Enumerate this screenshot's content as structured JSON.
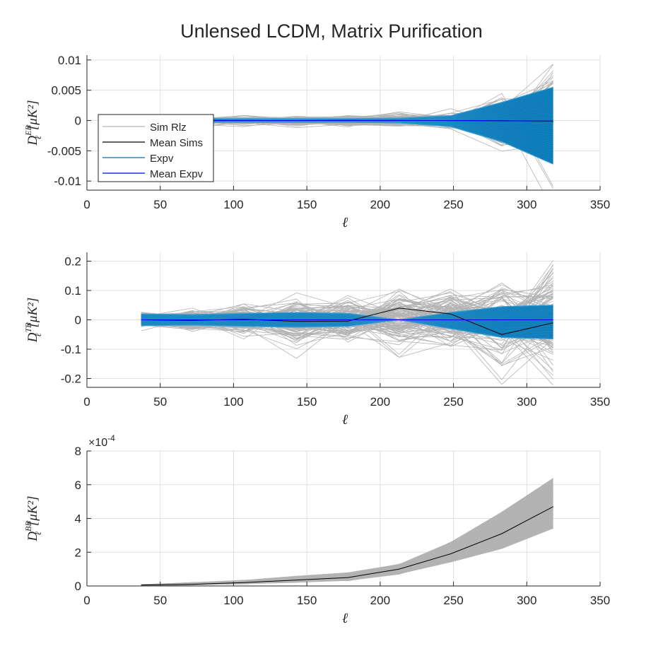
{
  "title": "Unlensed LCDM, Matrix Purification",
  "colors": {
    "sim": "#b3b3b3",
    "mean_sims": "#000000",
    "expv": "#0072bd",
    "expv_band": "#0a7bb8",
    "mean_expv": "#0000ff",
    "grid": "#dfdfdf",
    "axis": "#262626"
  },
  "legend": {
    "entries": [
      {
        "label": "Sim Rlz",
        "color": "#b3b3b3"
      },
      {
        "label": "Mean Sims",
        "color": "#000000"
      },
      {
        "label": "Expv",
        "color": "#0072bd"
      },
      {
        "label": "Mean Expv",
        "color": "#0000ff"
      }
    ]
  },
  "chart_data": [
    {
      "type": "line",
      "id": "eb",
      "xlabel": "ℓ",
      "ylabel_main": "D",
      "ylabel_sub": "ℓ",
      "ylabel_sup": "EB",
      "ylabel_unit": "[μK²]",
      "xlim": [
        0,
        350
      ],
      "ylim": [
        -0.0115,
        0.0108
      ],
      "xticks": [
        0,
        50,
        100,
        150,
        200,
        250,
        300,
        350
      ],
      "yticks": [
        -0.01,
        -0.005,
        0,
        0.005,
        0.01
      ],
      "ytick_labels": [
        "-0.01",
        "-0.005",
        "0",
        "0.005",
        "0.01"
      ],
      "exponent_label": "",
      "grid": true,
      "legend_position": "left-center",
      "x": [
        37,
        72,
        107,
        143,
        178,
        213,
        248,
        283,
        318
      ],
      "series": [
        {
          "name": "Mean Sims",
          "values": [
            1e-05,
            2e-05,
            1e-05,
            0.0,
            2e-05,
            1e-05,
            -1e-05,
            -2e-05,
            -0.0001
          ]
        },
        {
          "name": "Mean Expv",
          "values": [
            0,
            0,
            0,
            0,
            0,
            0,
            0,
            -5e-05,
            -0.0001
          ]
        }
      ],
      "bands": {
        "sim_spread": [
          0.0004,
          0.0006,
          0.0007,
          0.0007,
          0.0008,
          0.0009,
          0.0012,
          0.004,
          0.0085
        ],
        "expv_spread": [
          0.0002,
          0.0003,
          0.0003,
          0.0003,
          0.0003,
          0.0004,
          0.0008,
          0.003,
          0.0055
        ],
        "expv_upper": [
          0.0002,
          0.0003,
          0.0003,
          0.0003,
          0.0003,
          0.0004,
          0.0008,
          0.003,
          0.0055
        ],
        "expv_lower": [
          -0.0002,
          -0.0003,
          -0.0003,
          -0.0003,
          -0.0003,
          -0.0004,
          -0.001,
          -0.0035,
          -0.0072
        ],
        "x_start": 87
      }
    },
    {
      "type": "line",
      "id": "tb",
      "xlabel": "ℓ",
      "ylabel_main": "D",
      "ylabel_sub": "ℓ",
      "ylabel_sup": "TB",
      "ylabel_unit": "[μK²]",
      "xlim": [
        0,
        350
      ],
      "ylim": [
        -0.23,
        0.23
      ],
      "xticks": [
        0,
        50,
        100,
        150,
        200,
        250,
        300,
        350
      ],
      "yticks": [
        -0.2,
        -0.1,
        0,
        0.1,
        0.2
      ],
      "ytick_labels": [
        "-0.2",
        "-0.1",
        "0",
        "0.1",
        "0.2"
      ],
      "exponent_label": "",
      "grid": true,
      "x": [
        37,
        72,
        107,
        143,
        178,
        213,
        248,
        283,
        318
      ],
      "series": [
        {
          "name": "Mean Sims",
          "values": [
            0.0,
            -0.002,
            0.002,
            -0.005,
            -0.004,
            0.04,
            0.02,
            -0.05,
            -0.01
          ]
        },
        {
          "name": "Mean Expv",
          "values": [
            0,
            0,
            0,
            0,
            0,
            0,
            0,
            0,
            0
          ]
        }
      ],
      "bands": {
        "sim_spread": [
          0.025,
          0.035,
          0.05,
          0.07,
          0.07,
          0.09,
          0.09,
          0.14,
          0.17
        ],
        "expv_spread": [
          0.02,
          0.018,
          0.022,
          0.025,
          0.022,
          0.0,
          0.025,
          0.045,
          0.05
        ],
        "expv_upper": [
          0.02,
          0.018,
          0.022,
          0.025,
          0.022,
          0.0,
          0.025,
          0.045,
          0.05
        ],
        "expv_lower": [
          -0.02,
          -0.018,
          -0.022,
          -0.025,
          -0.022,
          0.0,
          -0.03,
          -0.06,
          -0.065
        ],
        "x_start": 37
      }
    },
    {
      "type": "line",
      "id": "bb",
      "xlabel": "ℓ",
      "ylabel_main": "D",
      "ylabel_sub": "ℓ",
      "ylabel_sup": "BB",
      "ylabel_unit": "[μK²]",
      "xlim": [
        0,
        350
      ],
      "ylim": [
        0,
        0.0008
      ],
      "xticks": [
        0,
        50,
        100,
        150,
        200,
        250,
        300,
        350
      ],
      "yticks": [
        0,
        0.0002,
        0.0004,
        0.0006,
        0.0008
      ],
      "ytick_labels": [
        "0",
        "2",
        "4",
        "6",
        "8"
      ],
      "exponent_label": "×10",
      "exponent_power": "-4",
      "grid": true,
      "x": [
        37,
        72,
        107,
        143,
        178,
        213,
        248,
        283,
        318
      ],
      "series": [
        {
          "name": "Mean Sims",
          "values": [
            5e-06,
            1e-05,
            2e-05,
            3.5e-05,
            5e-05,
            0.0001,
            0.00019,
            0.00031,
            0.00047
          ]
        }
      ],
      "bands": {
        "sim_upper": [
          1e-05,
          2e-05,
          3.5e-05,
          6e-05,
          8e-05,
          0.00013,
          0.00026,
          0.00044,
          0.00064
        ],
        "sim_lower": [
          0.0,
          5e-06,
          1e-05,
          2e-05,
          3e-05,
          7e-05,
          0.00014,
          0.00022,
          0.00034
        ],
        "x_start": 37
      }
    }
  ]
}
